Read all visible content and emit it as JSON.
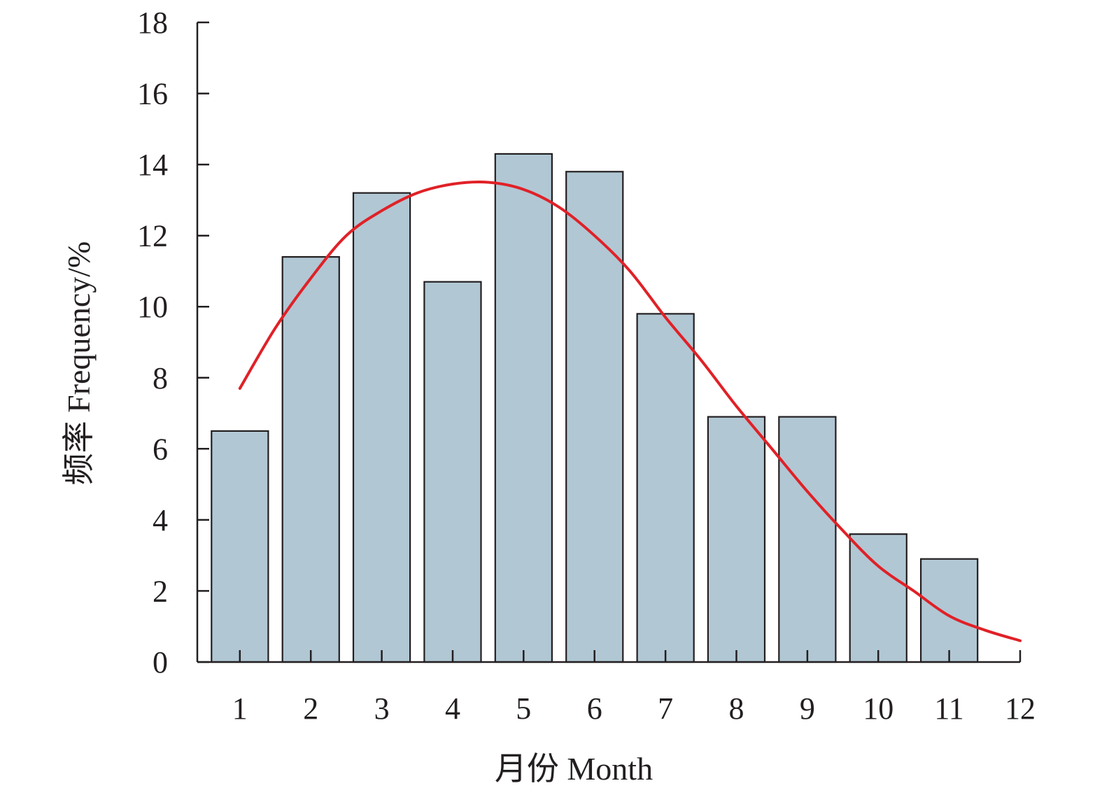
{
  "chart_data": {
    "type": "bar",
    "title": "",
    "xlabel": "月份 Month",
    "ylabel": "频率 Frequency/%",
    "categories": [
      "1",
      "2",
      "3",
      "4",
      "5",
      "6",
      "7",
      "8",
      "9",
      "10",
      "11"
    ],
    "x_tick_labels": [
      "1",
      "2",
      "3",
      "4",
      "5",
      "6",
      "7",
      "8",
      "9",
      "10",
      "11",
      "12"
    ],
    "values": [
      6.5,
      11.4,
      13.2,
      10.7,
      14.3,
      13.8,
      9.8,
      6.9,
      6.9,
      3.6,
      2.9
    ],
    "ylim": [
      0,
      18
    ],
    "xlim": [
      0.4,
      12
    ],
    "y_ticks": [
      0,
      2,
      4,
      6,
      8,
      10,
      12,
      14,
      16,
      18
    ],
    "grid": false,
    "fit_curve": {
      "type": "line",
      "x": [
        1,
        1.5,
        2,
        2.5,
        3,
        3.5,
        4,
        4.5,
        5,
        5.5,
        6,
        6.5,
        7,
        7.5,
        8,
        8.5,
        9,
        9.5,
        10,
        10.5,
        11,
        11.5,
        12
      ],
      "y": [
        7.7,
        9.4,
        10.8,
        12.0,
        12.7,
        13.2,
        13.45,
        13.5,
        13.3,
        12.8,
        12.0,
        11.0,
        9.7,
        8.5,
        7.2,
        6.0,
        4.8,
        3.7,
        2.7,
        2.0,
        1.3,
        0.9,
        0.6
      ]
    },
    "colors": {
      "bar_fill": "#b1c7d4",
      "bar_stroke": "#231f20",
      "curve": "#e02127",
      "axis": "#231f20",
      "text": "#231f20"
    }
  }
}
